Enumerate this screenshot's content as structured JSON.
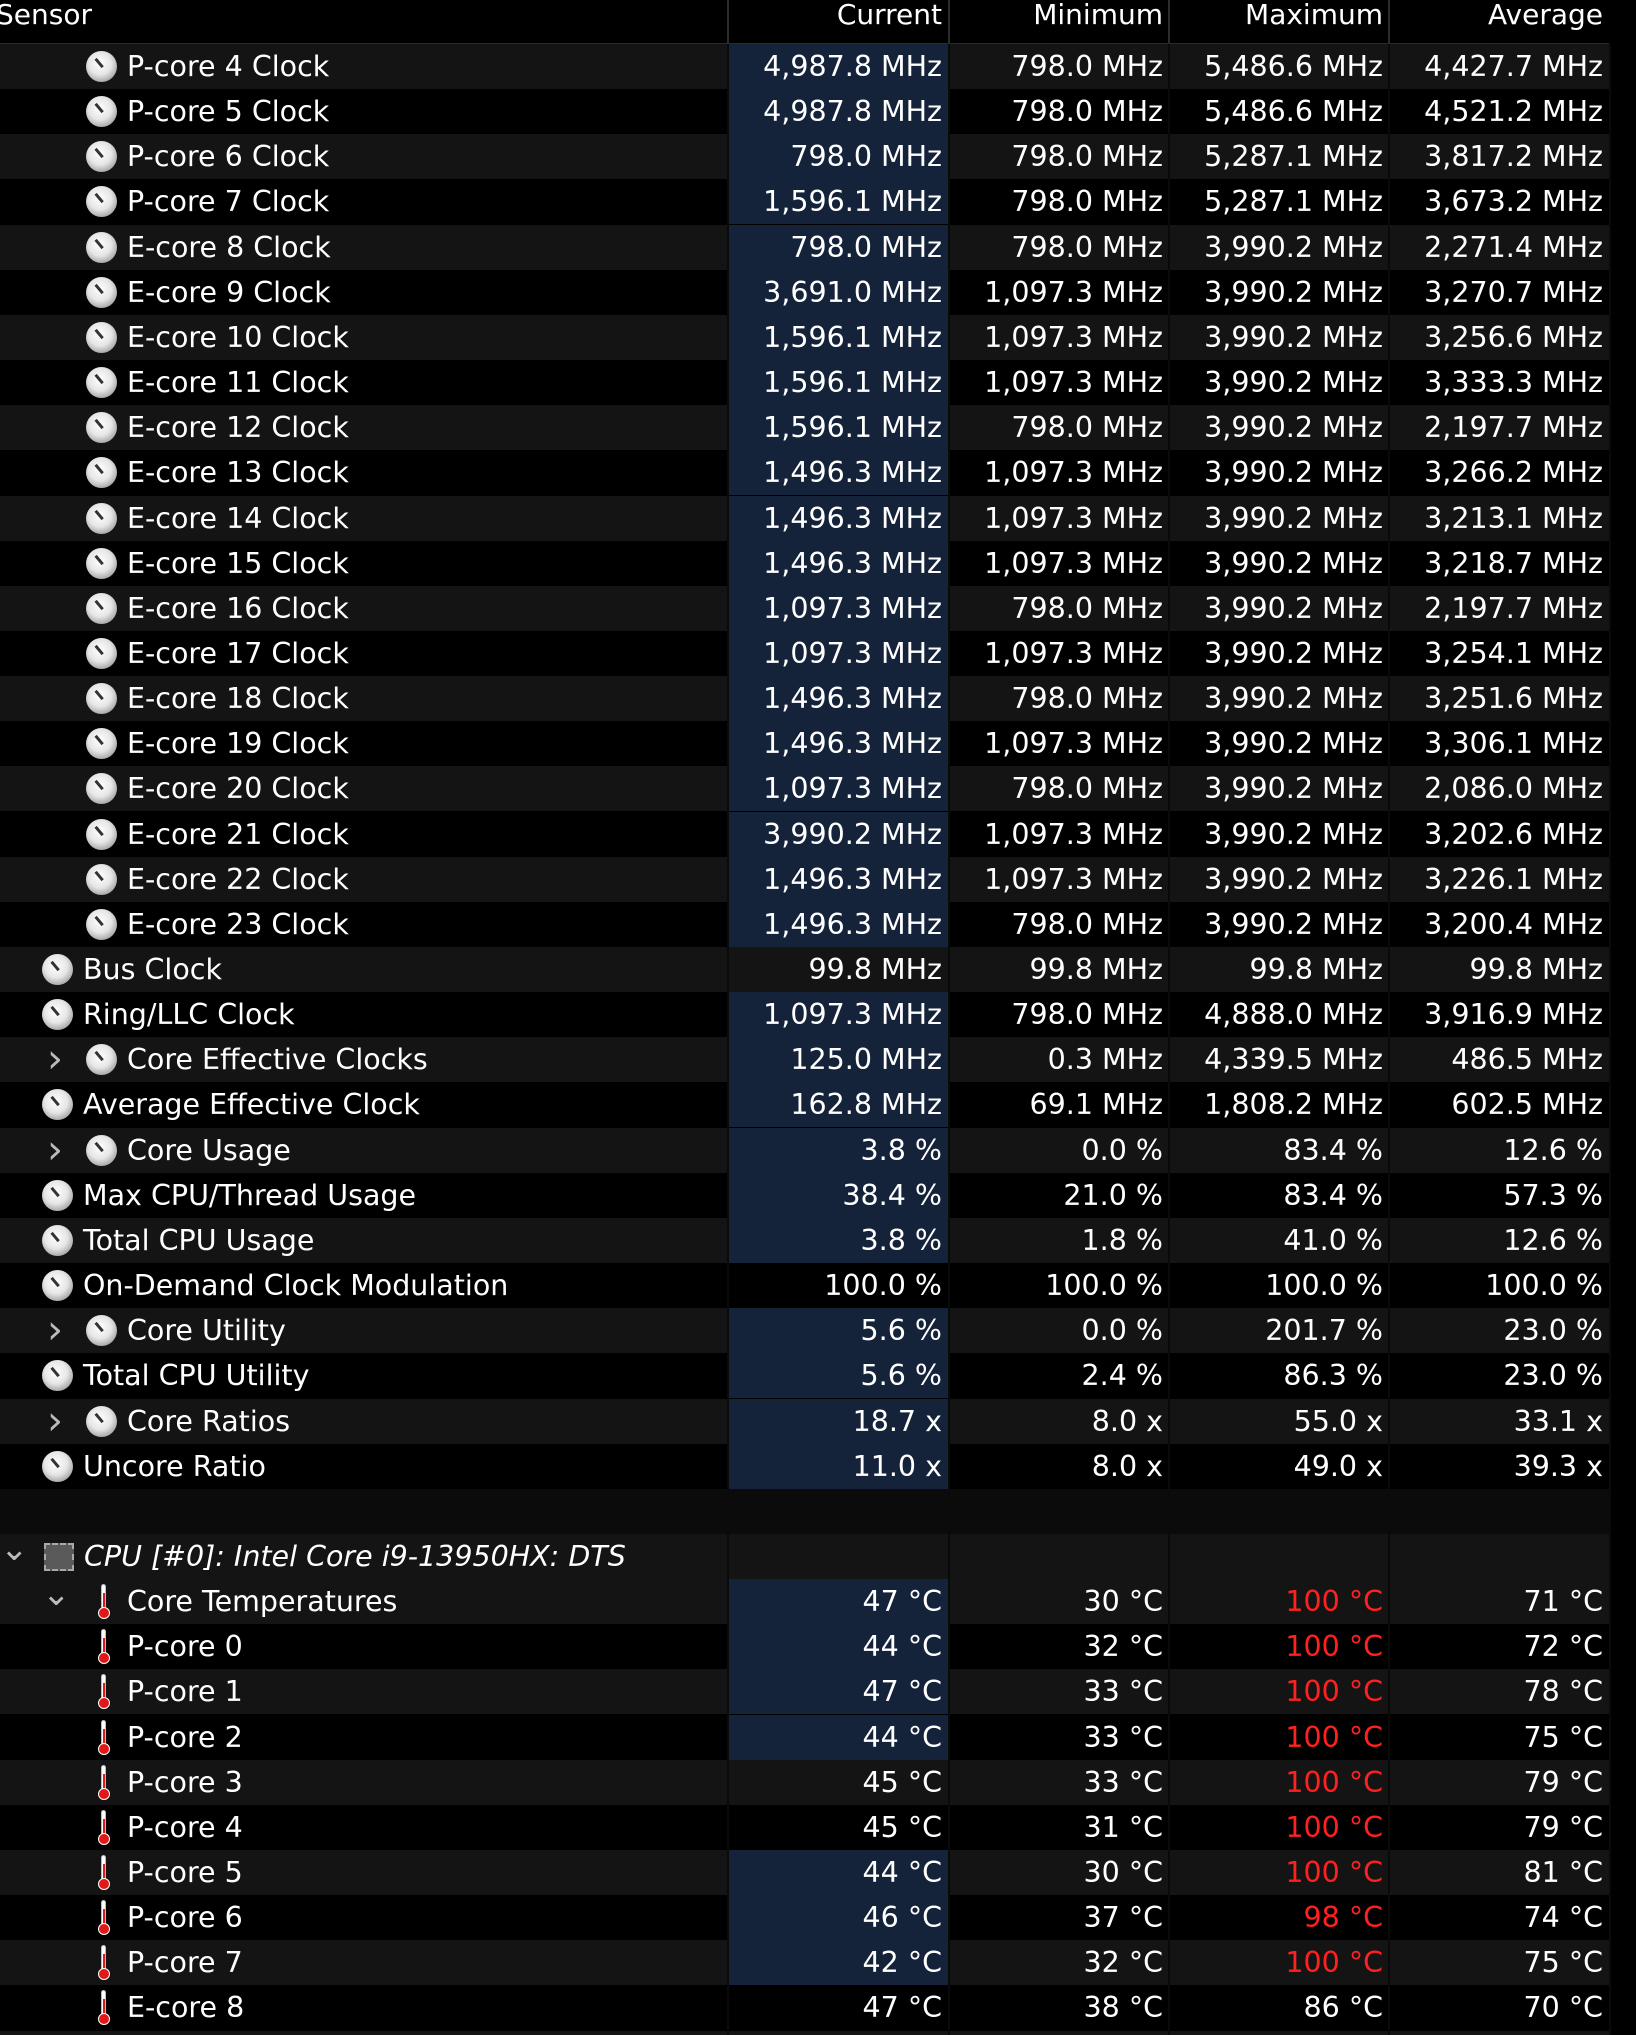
{
  "columns": {
    "sensor": "Sensor",
    "current": "Current",
    "minimum": "Minimum",
    "maximum": "Maximum",
    "average": "Average"
  },
  "clock_rows": [
    {
      "name": "P-core 4 Clock",
      "indent": 2,
      "icon": "clock-icon",
      "current": "4,987.8 MHz",
      "minimum": "798.0 MHz",
      "maximum": "5,486.6 MHz",
      "average": "4,427.7 MHz",
      "highlight": true
    },
    {
      "name": "P-core 5 Clock",
      "indent": 2,
      "icon": "clock-icon",
      "current": "4,987.8 MHz",
      "minimum": "798.0 MHz",
      "maximum": "5,486.6 MHz",
      "average": "4,521.2 MHz",
      "highlight": true
    },
    {
      "name": "P-core 6 Clock",
      "indent": 2,
      "icon": "clock-icon",
      "current": "798.0 MHz",
      "minimum": "798.0 MHz",
      "maximum": "5,287.1 MHz",
      "average": "3,817.2 MHz",
      "highlight": true
    },
    {
      "name": "P-core 7 Clock",
      "indent": 2,
      "icon": "clock-icon",
      "current": "1,596.1 MHz",
      "minimum": "798.0 MHz",
      "maximum": "5,287.1 MHz",
      "average": "3,673.2 MHz",
      "highlight": true
    },
    {
      "name": "E-core 8 Clock",
      "indent": 2,
      "icon": "clock-icon",
      "current": "798.0 MHz",
      "minimum": "798.0 MHz",
      "maximum": "3,990.2 MHz",
      "average": "2,271.4 MHz",
      "highlight": true
    },
    {
      "name": "E-core 9 Clock",
      "indent": 2,
      "icon": "clock-icon",
      "current": "3,691.0 MHz",
      "minimum": "1,097.3 MHz",
      "maximum": "3,990.2 MHz",
      "average": "3,270.7 MHz",
      "highlight": true
    },
    {
      "name": "E-core 10 Clock",
      "indent": 2,
      "icon": "clock-icon",
      "current": "1,596.1 MHz",
      "minimum": "1,097.3 MHz",
      "maximum": "3,990.2 MHz",
      "average": "3,256.6 MHz",
      "highlight": true
    },
    {
      "name": "E-core 11 Clock",
      "indent": 2,
      "icon": "clock-icon",
      "current": "1,596.1 MHz",
      "minimum": "1,097.3 MHz",
      "maximum": "3,990.2 MHz",
      "average": "3,333.3 MHz",
      "highlight": true
    },
    {
      "name": "E-core 12 Clock",
      "indent": 2,
      "icon": "clock-icon",
      "current": "1,596.1 MHz",
      "minimum": "798.0 MHz",
      "maximum": "3,990.2 MHz",
      "average": "2,197.7 MHz",
      "highlight": true
    },
    {
      "name": "E-core 13 Clock",
      "indent": 2,
      "icon": "clock-icon",
      "current": "1,496.3 MHz",
      "minimum": "1,097.3 MHz",
      "maximum": "3,990.2 MHz",
      "average": "3,266.2 MHz",
      "highlight": true
    },
    {
      "name": "E-core 14 Clock",
      "indent": 2,
      "icon": "clock-icon",
      "current": "1,496.3 MHz",
      "minimum": "1,097.3 MHz",
      "maximum": "3,990.2 MHz",
      "average": "3,213.1 MHz",
      "highlight": true
    },
    {
      "name": "E-core 15 Clock",
      "indent": 2,
      "icon": "clock-icon",
      "current": "1,496.3 MHz",
      "minimum": "1,097.3 MHz",
      "maximum": "3,990.2 MHz",
      "average": "3,218.7 MHz",
      "highlight": true
    },
    {
      "name": "E-core 16 Clock",
      "indent": 2,
      "icon": "clock-icon",
      "current": "1,097.3 MHz",
      "minimum": "798.0 MHz",
      "maximum": "3,990.2 MHz",
      "average": "2,197.7 MHz",
      "highlight": true
    },
    {
      "name": "E-core 17 Clock",
      "indent": 2,
      "icon": "clock-icon",
      "current": "1,097.3 MHz",
      "minimum": "1,097.3 MHz",
      "maximum": "3,990.2 MHz",
      "average": "3,254.1 MHz",
      "highlight": true
    },
    {
      "name": "E-core 18 Clock",
      "indent": 2,
      "icon": "clock-icon",
      "current": "1,496.3 MHz",
      "minimum": "798.0 MHz",
      "maximum": "3,990.2 MHz",
      "average": "3,251.6 MHz",
      "highlight": true
    },
    {
      "name": "E-core 19 Clock",
      "indent": 2,
      "icon": "clock-icon",
      "current": "1,496.3 MHz",
      "minimum": "1,097.3 MHz",
      "maximum": "3,990.2 MHz",
      "average": "3,306.1 MHz",
      "highlight": true
    },
    {
      "name": "E-core 20 Clock",
      "indent": 2,
      "icon": "clock-icon",
      "current": "1,097.3 MHz",
      "minimum": "798.0 MHz",
      "maximum": "3,990.2 MHz",
      "average": "2,086.0 MHz",
      "highlight": true
    },
    {
      "name": "E-core 21 Clock",
      "indent": 2,
      "icon": "clock-icon",
      "current": "3,990.2 MHz",
      "minimum": "1,097.3 MHz",
      "maximum": "3,990.2 MHz",
      "average": "3,202.6 MHz",
      "highlight": true
    },
    {
      "name": "E-core 22 Clock",
      "indent": 2,
      "icon": "clock-icon",
      "current": "1,496.3 MHz",
      "minimum": "1,097.3 MHz",
      "maximum": "3,990.2 MHz",
      "average": "3,226.1 MHz",
      "highlight": true
    },
    {
      "name": "E-core 23 Clock",
      "indent": 2,
      "icon": "clock-icon",
      "current": "1,496.3 MHz",
      "minimum": "798.0 MHz",
      "maximum": "3,990.2 MHz",
      "average": "3,200.4 MHz",
      "highlight": true
    },
    {
      "name": "Bus Clock",
      "indent": 1,
      "icon": "clock-icon",
      "current": "99.8 MHz",
      "minimum": "99.8 MHz",
      "maximum": "99.8 MHz",
      "average": "99.8 MHz",
      "highlight": false
    },
    {
      "name": "Ring/LLC Clock",
      "indent": 1,
      "icon": "clock-icon",
      "current": "1,097.3 MHz",
      "minimum": "798.0 MHz",
      "maximum": "4,888.0 MHz",
      "average": "3,916.9 MHz",
      "highlight": true
    },
    {
      "name": "Core Effective Clocks",
      "indent": 2,
      "expander": true,
      "icon": "clock-icon",
      "current": "125.0 MHz",
      "minimum": "0.3 MHz",
      "maximum": "4,339.5 MHz",
      "average": "486.5 MHz",
      "highlight": true
    },
    {
      "name": "Average Effective Clock",
      "indent": 1,
      "icon": "clock-icon",
      "current": "162.8 MHz",
      "minimum": "69.1 MHz",
      "maximum": "1,808.2 MHz",
      "average": "602.5 MHz",
      "highlight": true
    },
    {
      "name": "Core Usage",
      "indent": 2,
      "expander": true,
      "icon": "clock-icon",
      "current": "3.8 %",
      "minimum": "0.0 %",
      "maximum": "83.4 %",
      "average": "12.6 %",
      "highlight": true
    },
    {
      "name": "Max CPU/Thread Usage",
      "indent": 1,
      "icon": "clock-icon",
      "current": "38.4 %",
      "minimum": "21.0 %",
      "maximum": "83.4 %",
      "average": "57.3 %",
      "highlight": true
    },
    {
      "name": "Total CPU Usage",
      "indent": 1,
      "icon": "clock-icon",
      "current": "3.8 %",
      "minimum": "1.8 %",
      "maximum": "41.0 %",
      "average": "12.6 %",
      "highlight": true
    },
    {
      "name": "On-Demand Clock Modulation",
      "indent": 1,
      "icon": "clock-icon",
      "current": "100.0 %",
      "minimum": "100.0 %",
      "maximum": "100.0 %",
      "average": "100.0 %",
      "highlight": false
    },
    {
      "name": "Core Utility",
      "indent": 2,
      "expander": true,
      "icon": "clock-icon",
      "current": "5.6 %",
      "minimum": "0.0 %",
      "maximum": "201.7 %",
      "average": "23.0 %",
      "highlight": true
    },
    {
      "name": "Total CPU Utility",
      "indent": 1,
      "icon": "clock-icon",
      "current": "5.6 %",
      "minimum": "2.4 %",
      "maximum": "86.3 %",
      "average": "23.0 %",
      "highlight": true
    },
    {
      "name": "Core Ratios",
      "indent": 2,
      "expander": true,
      "icon": "clock-icon",
      "current": "18.7 x",
      "minimum": "8.0 x",
      "maximum": "55.0 x",
      "average": "33.1 x",
      "highlight": true
    },
    {
      "name": "Uncore Ratio",
      "indent": 1,
      "icon": "clock-icon",
      "current": "11.0 x",
      "minimum": "8.0 x",
      "maximum": "49.0 x",
      "average": "39.3 x",
      "highlight": true
    }
  ],
  "category": {
    "name": "CPU [#0]: Intel Core i9-13950HX: DTS",
    "icon": "cpu-chip-icon"
  },
  "temp_rows": [
    {
      "name": "Core Temperatures",
      "expander": true,
      "icon": "thermometer-icon",
      "current": "47 °C",
      "minimum": "30 °C",
      "maximum": "100 °C",
      "average": "71 °C",
      "max_alert": true,
      "highlight": true
    },
    {
      "name": "P-core 0",
      "icon": "thermometer-icon",
      "current": "44 °C",
      "minimum": "32 °C",
      "maximum": "100 °C",
      "average": "72 °C",
      "max_alert": true,
      "highlight": true
    },
    {
      "name": "P-core 1",
      "icon": "thermometer-icon",
      "current": "47 °C",
      "minimum": "33 °C",
      "maximum": "100 °C",
      "average": "78 °C",
      "max_alert": true,
      "highlight": true
    },
    {
      "name": "P-core 2",
      "icon": "thermometer-icon",
      "current": "44 °C",
      "minimum": "33 °C",
      "maximum": "100 °C",
      "average": "75 °C",
      "max_alert": true,
      "highlight": true
    },
    {
      "name": "P-core 3",
      "icon": "thermometer-icon",
      "current": "45 °C",
      "minimum": "33 °C",
      "maximum": "100 °C",
      "average": "79 °C",
      "max_alert": true,
      "highlight": false
    },
    {
      "name": "P-core 4",
      "icon": "thermometer-icon",
      "current": "45 °C",
      "minimum": "31 °C",
      "maximum": "100 °C",
      "average": "79 °C",
      "max_alert": true,
      "highlight": false
    },
    {
      "name": "P-core 5",
      "icon": "thermometer-icon",
      "current": "44 °C",
      "minimum": "30 °C",
      "maximum": "100 °C",
      "average": "81 °C",
      "max_alert": true,
      "highlight": true
    },
    {
      "name": "P-core 6",
      "icon": "thermometer-icon",
      "current": "46 °C",
      "minimum": "37 °C",
      "maximum": "98 °C",
      "average": "74 °C",
      "max_alert": true,
      "highlight": true
    },
    {
      "name": "P-core 7",
      "icon": "thermometer-icon",
      "current": "42 °C",
      "minimum": "32 °C",
      "maximum": "100 °C",
      "average": "75 °C",
      "max_alert": true,
      "highlight": true
    },
    {
      "name": "E-core 8",
      "icon": "thermometer-icon",
      "current": "47 °C",
      "minimum": "38 °C",
      "maximum": "86 °C",
      "average": "70 °C",
      "max_alert": false,
      "highlight": false
    }
  ],
  "colors": {
    "background": "#000000",
    "row_alt": "#141414",
    "current_highlight": "#14223a",
    "alert_red": "#ff2020",
    "text": "#ffffff"
  }
}
